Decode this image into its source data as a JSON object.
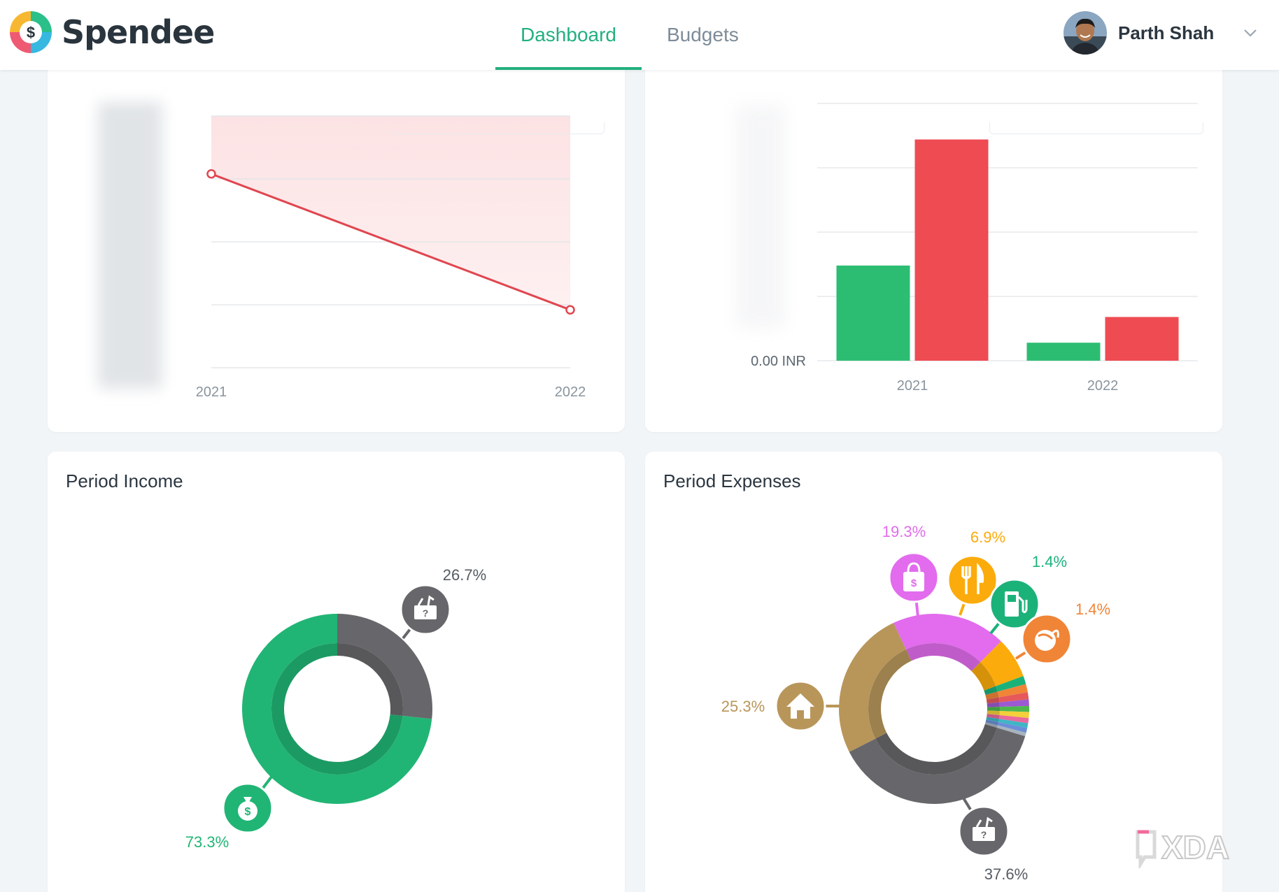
{
  "brand": {
    "name": "Spendee",
    "logo_icon": "spendee-logo-icon"
  },
  "nav": {
    "tabs": [
      {
        "label": "Dashboard",
        "active": true
      },
      {
        "label": "Budgets",
        "active": false
      }
    ]
  },
  "user": {
    "name": "Parth Shah",
    "avatar_icon": "user-avatar",
    "menu_icon": "chevron-down-icon"
  },
  "colors": {
    "accent": "#22b07d",
    "income": "#21b575",
    "expense": "#ef4b53",
    "gray": "#67676b",
    "shopping": "#e26ced",
    "food": "#fbab0b",
    "transport": "#1bb27a",
    "groceries": "#f08537",
    "housing": "#b8965a"
  },
  "cards": {
    "balance_trend": {
      "chart_data": {
        "type": "area",
        "title": "",
        "x": [
          "2021",
          "2022"
        ],
        "series": [
          {
            "values": [
              0.77,
              0.23
            ]
          }
        ],
        "y_unit": "fraction of chart height (y-axis labels blurred)",
        "ylim": [
          0,
          1
        ],
        "grid": true
      }
    },
    "cash_flow": {
      "chart_data": {
        "type": "bar",
        "title": "",
        "categories": [
          "2021",
          "2022"
        ],
        "series": [
          {
            "color": "#2dbd72",
            "values": [
              0.37,
              0.07
            ]
          },
          {
            "color": "#ef4b53",
            "values": [
              0.86,
              0.17
            ]
          }
        ],
        "ylabel_tick": "0.00 INR",
        "ylim": [
          0,
          1
        ],
        "y_unit": "fraction of axis (other tick labels blurred)",
        "grid": true
      }
    },
    "period_income": {
      "title": "Period Income",
      "chart_data": {
        "type": "pie",
        "slices": [
          {
            "label": "26.7%",
            "value": 26.7,
            "color": "#67676b",
            "icon": "unknown-category-icon"
          },
          {
            "label": "73.3%",
            "value": 73.3,
            "color": "#21b575",
            "icon": "money-bag-icon"
          }
        ]
      }
    },
    "period_expenses": {
      "title": "Period Expenses",
      "chart_data": {
        "type": "pie",
        "slices": [
          {
            "label": "19.3%",
            "value": 19.3,
            "color": "#e26ced",
            "icon": "shopping-bag-icon"
          },
          {
            "label": "6.9%",
            "value": 6.9,
            "color": "#fbab0b",
            "icon": "fork-knife-icon"
          },
          {
            "label": "1.4%",
            "value": 1.4,
            "color": "#1bb27a",
            "icon": "fuel-pump-icon"
          },
          {
            "label": "1.4%",
            "value": 1.4,
            "color": "#f08537",
            "icon": "groceries-icon"
          },
          {
            "label": "",
            "value": 1.2,
            "color": "#e6585b"
          },
          {
            "label": "",
            "value": 1.1,
            "color": "#9c59d1"
          },
          {
            "label": "",
            "value": 1.0,
            "color": "#4db74e"
          },
          {
            "label": "",
            "value": 1.0,
            "color": "#f3cf3a"
          },
          {
            "label": "",
            "value": 0.9,
            "color": "#e96a9c"
          },
          {
            "label": "",
            "value": 0.8,
            "color": "#3fb6c6"
          },
          {
            "label": "",
            "value": 0.8,
            "color": "#6a8ed8"
          },
          {
            "label": "",
            "value": 0.6,
            "color": "#a7b3bd"
          },
          {
            "label": "37.6%",
            "value": 37.6,
            "color": "#67676b",
            "icon": "unknown-category-icon"
          },
          {
            "label": "25.3%",
            "value": 25.3,
            "color": "#b8965a",
            "icon": "house-icon"
          }
        ]
      }
    }
  },
  "watermark": {
    "text": "XDA"
  }
}
